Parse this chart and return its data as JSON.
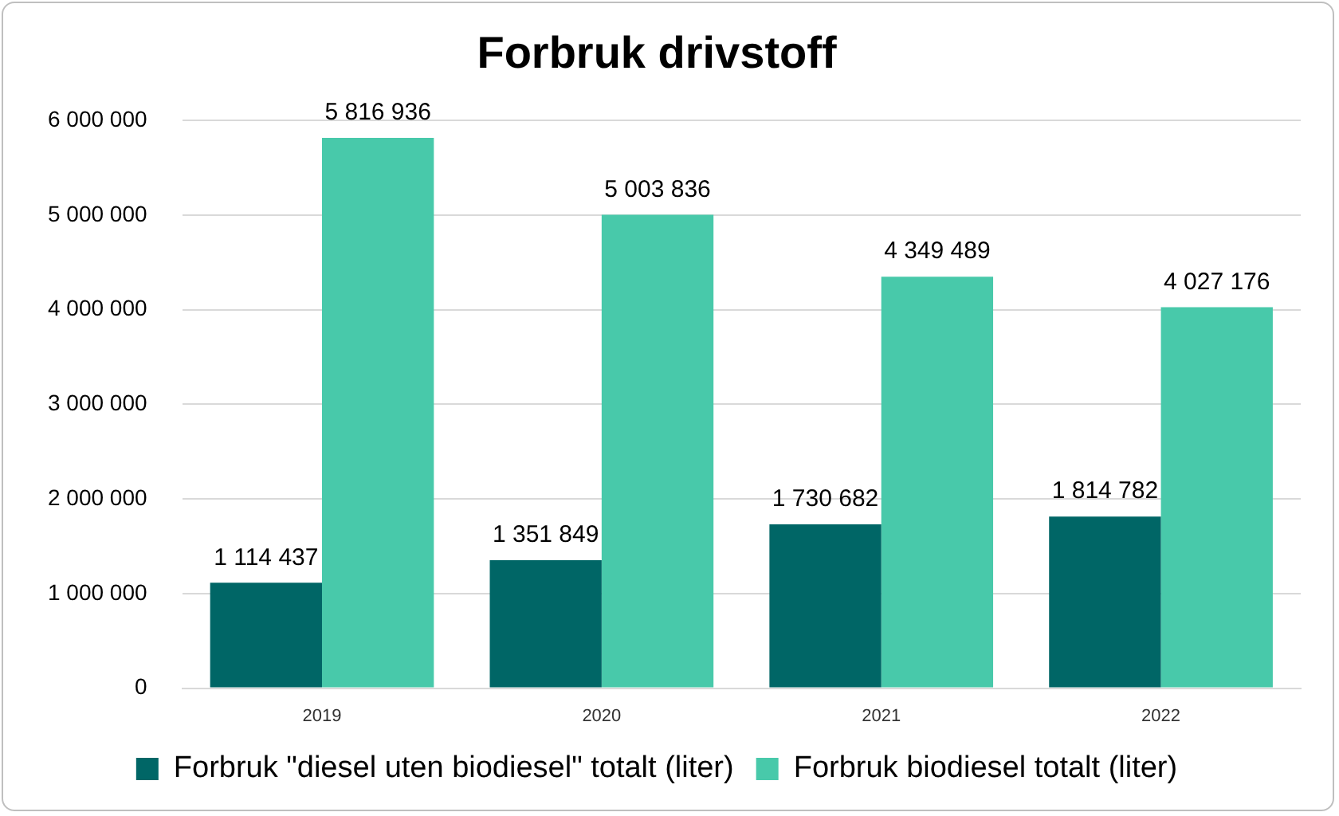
{
  "chart_data": {
    "type": "bar",
    "title": "Forbruk drivstoff",
    "categories": [
      "2019",
      "2020",
      "2021",
      "2022"
    ],
    "series": [
      {
        "name": "Forbruk \"diesel uten biodiesel\" totalt (liter)",
        "color": "#006666",
        "values": [
          1114437,
          1351849,
          1730682,
          1814782
        ],
        "value_labels": [
          "1 114 437",
          "1 351 849",
          "1 730 682",
          "1 814 782"
        ]
      },
      {
        "name": "Forbruk biodiesel totalt (liter)",
        "color": "#48c9aa",
        "values": [
          5816936,
          5003836,
          4349489,
          4027176
        ],
        "value_labels": [
          "5 816 936",
          "5 003 836",
          "4 349 489",
          "4 027 176"
        ]
      }
    ],
    "ylim": [
      0,
      6000000
    ],
    "yticks": [
      0,
      {
        "value": 1000000,
        "label": "1 000 000"
      },
      {
        "value": 2000000,
        "label": "2 000 000"
      },
      {
        "value": 3000000,
        "label": "3 000 000"
      },
      {
        "value": 4000000,
        "label": "4 000 000"
      },
      {
        "value": 5000000,
        "label": "5 000 000"
      },
      {
        "value": 6000000,
        "label": "6 000 000"
      }
    ],
    "grid": "y",
    "legend": "bottom"
  }
}
